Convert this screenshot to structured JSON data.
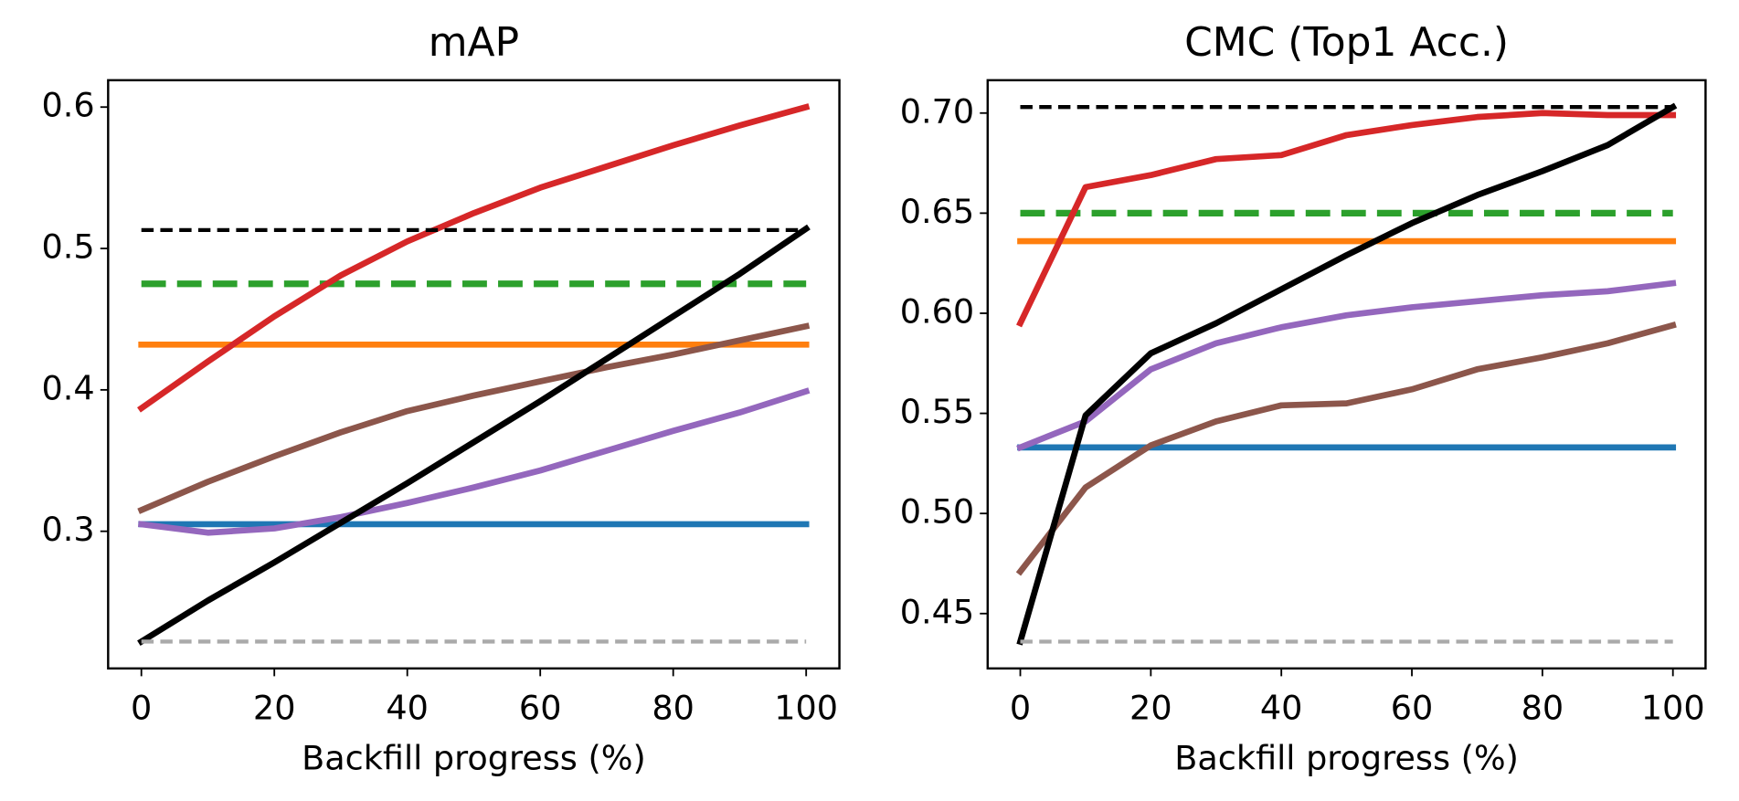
{
  "chart_data": [
    {
      "type": "line",
      "title": "mAP",
      "xlabel": "Backfill progress (%)",
      "x": [
        0,
        10,
        20,
        30,
        40,
        50,
        60,
        70,
        80,
        90,
        100
      ],
      "xlim": [
        -5,
        105
      ],
      "xticks": [
        0,
        20,
        40,
        60,
        80,
        100
      ],
      "ylim": [
        0.203,
        0.619
      ],
      "yticks": [
        0.3,
        0.4,
        0.5,
        0.6
      ],
      "series": [
        {
          "color": "#1f77b4",
          "linestyle": "solid",
          "values": [
            0.305,
            0.305,
            0.305,
            0.305,
            0.305,
            0.305,
            0.305,
            0.305,
            0.305,
            0.305,
            0.305
          ]
        },
        {
          "color": "#ff7f0e",
          "linestyle": "solid",
          "values": [
            0.432,
            0.432,
            0.432,
            0.432,
            0.432,
            0.432,
            0.432,
            0.432,
            0.432,
            0.432,
            0.432
          ]
        },
        {
          "color": "#2ca02c",
          "linestyle": "long-dashed",
          "values": [
            0.475,
            0.475,
            0.475,
            0.475,
            0.475,
            0.475,
            0.475,
            0.475,
            0.475,
            0.475,
            0.475
          ]
        },
        {
          "color": "#d62728",
          "linestyle": "solid",
          "values": [
            0.387,
            0.42,
            0.452,
            0.481,
            0.505,
            0.525,
            0.543,
            0.558,
            0.573,
            0.587,
            0.6
          ]
        },
        {
          "color": "#9467bd",
          "linestyle": "solid",
          "values": [
            0.305,
            0.299,
            0.302,
            0.31,
            0.32,
            0.331,
            0.343,
            0.357,
            0.371,
            0.384,
            0.399
          ]
        },
        {
          "color": "#8c564b",
          "linestyle": "solid",
          "values": [
            0.315,
            0.335,
            0.353,
            0.37,
            0.385,
            0.396,
            0.406,
            0.416,
            0.425,
            0.435,
            0.445
          ]
        },
        {
          "color": "#000000",
          "linestyle": "solid",
          "values": [
            0.222,
            0.251,
            0.278,
            0.306,
            0.334,
            0.363,
            0.392,
            0.422,
            0.452,
            0.482,
            0.514
          ]
        },
        {
          "color": "#000000",
          "linestyle": "dashed",
          "values": [
            0.513,
            0.513,
            0.513,
            0.513,
            0.513,
            0.513,
            0.513,
            0.513,
            0.513,
            0.513,
            0.513
          ]
        },
        {
          "color": "#aaaaaa",
          "linestyle": "dashed",
          "values": [
            0.222,
            0.222,
            0.222,
            0.222,
            0.222,
            0.222,
            0.222,
            0.222,
            0.222,
            0.222,
            0.222
          ]
        }
      ]
    },
    {
      "type": "line",
      "title": "CMC (Top1 Acc.)",
      "xlabel": "Backfill progress (%)",
      "x": [
        0,
        10,
        20,
        30,
        40,
        50,
        60,
        70,
        80,
        90,
        100
      ],
      "xlim": [
        -5,
        105
      ],
      "xticks": [
        0,
        20,
        40,
        60,
        80,
        100
      ],
      "ylim": [
        0.4226,
        0.7164
      ],
      "yticks": [
        0.45,
        {
          "value": 0.5,
          "label": "0.50"
        },
        0.55,
        {
          "value": 0.6,
          "label": "0.60"
        },
        0.65,
        {
          "value": 0.7,
          "label": "0.70"
        }
      ],
      "series": [
        {
          "color": "#1f77b4",
          "linestyle": "solid",
          "values": [
            0.533,
            0.533,
            0.533,
            0.533,
            0.533,
            0.533,
            0.533,
            0.533,
            0.533,
            0.533,
            0.533
          ]
        },
        {
          "color": "#ff7f0e",
          "linestyle": "solid",
          "values": [
            0.636,
            0.636,
            0.636,
            0.636,
            0.636,
            0.636,
            0.636,
            0.636,
            0.636,
            0.636,
            0.636
          ]
        },
        {
          "color": "#2ca02c",
          "linestyle": "long-dashed",
          "values": [
            0.65,
            0.65,
            0.65,
            0.65,
            0.65,
            0.65,
            0.65,
            0.65,
            0.65,
            0.65,
            0.65
          ]
        },
        {
          "color": "#d62728",
          "linestyle": "solid",
          "values": [
            0.595,
            0.663,
            0.669,
            0.677,
            0.679,
            0.689,
            0.694,
            0.698,
            0.7,
            0.699,
            0.699
          ]
        },
        {
          "color": "#9467bd",
          "linestyle": "solid",
          "values": [
            0.533,
            0.546,
            0.572,
            0.585,
            0.593,
            0.599,
            0.603,
            0.606,
            0.609,
            0.611,
            0.615
          ]
        },
        {
          "color": "#8c564b",
          "linestyle": "solid",
          "values": [
            0.471,
            0.513,
            0.534,
            0.546,
            0.554,
            0.555,
            0.562,
            0.572,
            0.578,
            0.585,
            0.594
          ]
        },
        {
          "color": "#000000",
          "linestyle": "solid",
          "values": [
            0.436,
            0.549,
            0.58,
            0.595,
            0.612,
            0.629,
            0.645,
            0.659,
            0.671,
            0.684,
            0.703
          ]
        },
        {
          "color": "#000000",
          "linestyle": "dashed",
          "values": [
            0.703,
            0.703,
            0.703,
            0.703,
            0.703,
            0.703,
            0.703,
            0.703,
            0.703,
            0.703,
            0.703
          ]
        },
        {
          "color": "#aaaaaa",
          "linestyle": "dashed",
          "values": [
            0.436,
            0.436,
            0.436,
            0.436,
            0.436,
            0.436,
            0.436,
            0.436,
            0.436,
            0.436,
            0.436
          ]
        }
      ]
    }
  ]
}
